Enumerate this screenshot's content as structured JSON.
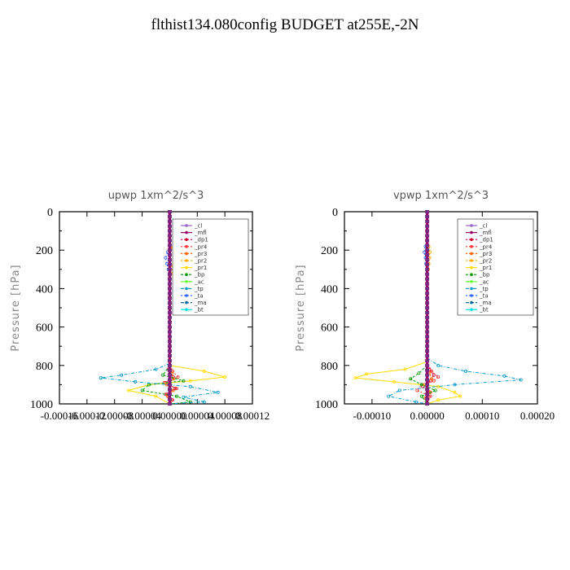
{
  "title": "flthist134.080config  BUDGET at255E,-2N",
  "series_style": [
    {
      "name": "_cl",
      "color": "#9966cc",
      "dash": "none"
    },
    {
      "name": "_mfl",
      "color": "#990066",
      "dash": "none"
    },
    {
      "name": "_dp1",
      "color": "#cc0033",
      "dash": "2,2"
    },
    {
      "name": "_pr4",
      "color": "#ff3333",
      "dash": "2,2"
    },
    {
      "name": "_pr3",
      "color": "#ff6600",
      "dash": "2,2"
    },
    {
      "name": "_pr2",
      "color": "#ffaa00",
      "dash": "2,2"
    },
    {
      "name": "_pr1",
      "color": "#ffdd00",
      "dash": "none"
    },
    {
      "name": "_bp",
      "color": "#009900",
      "dash": "3,2"
    },
    {
      "name": "_ac",
      "color": "#66ff33",
      "dash": "none"
    },
    {
      "name": "_tp",
      "color": "#0099cc",
      "dash": "4,2,1,2"
    },
    {
      "name": "_ta",
      "color": "#3366ff",
      "dash": "2,2"
    },
    {
      "name": "_ma",
      "color": "#006699",
      "dash": "4,2"
    },
    {
      "name": "_bt",
      "color": "#00dddd",
      "dash": "none"
    }
  ],
  "chart_data": [
    {
      "type": "line",
      "title": "upwp   1xm^2/s^3",
      "ylabel": "Pressure [hPa]",
      "xlabel": "",
      "ylim": [
        1000,
        0
      ],
      "y_ticks": [
        "0",
        "200",
        "400",
        "600",
        "800",
        "1000"
      ],
      "x_ticks": [
        "-0.00016",
        "-0.00012",
        "-0.00008",
        "-0.00004",
        "0.00000",
        "0.00004",
        "0.00008",
        "0.00012"
      ],
      "x_tick_values": [
        -0.00016,
        -0.00012,
        -8e-05,
        -4e-05,
        0.0,
        4e-05,
        8e-05,
        0.00012
      ],
      "xlim": [
        -0.00016,
        0.00012
      ],
      "grid": false,
      "legend": "top-right",
      "series": [
        {
          "name": "_cl",
          "p": [
            0,
            1000
          ],
          "v": [
            0,
            0
          ]
        },
        {
          "name": "_mfl",
          "p": [
            0,
            1000
          ],
          "v": [
            0,
            0
          ]
        },
        {
          "name": "_dp1",
          "p": [
            750,
            820,
            860,
            890,
            920,
            950,
            980,
            1000
          ],
          "v": [
            0,
            -2e-06,
            5e-06,
            -6e-06,
            8e-06,
            -4e-06,
            3e-06,
            0
          ]
        },
        {
          "name": "_pr4",
          "p": [
            780,
            830,
            860,
            890,
            920,
            950,
            980,
            1000
          ],
          "v": [
            0,
            4e-06,
            1.2e-05,
            -8e-06,
            1e-05,
            -6e-06,
            4e-06,
            0
          ]
        },
        {
          "name": "_pr3",
          "p": [
            800,
            840,
            870,
            900,
            930,
            960,
            1000
          ],
          "v": [
            0,
            3e-06,
            6e-06,
            -4e-06,
            5e-06,
            -3e-06,
            0
          ]
        },
        {
          "name": "_pr2",
          "p": [
            150,
            190,
            220,
            250,
            280,
            320,
            350
          ],
          "v": [
            0,
            4e-06,
            7e-06,
            6e-06,
            4e-06,
            3e-06,
            0
          ]
        },
        {
          "name": "_pr1",
          "p": [
            800,
            830,
            860,
            880,
            900,
            930,
            960,
            1000
          ],
          "v": [
            0,
            5e-05,
            8e-05,
            3e-05,
            -3e-05,
            -6e-05,
            -2e-05,
            0
          ]
        },
        {
          "name": "_bp",
          "p": [
            800,
            850,
            880,
            900,
            930,
            960,
            990,
            1000
          ],
          "v": [
            0,
            -1e-05,
            2e-05,
            -3e-05,
            -4e-05,
            1e-05,
            3e-05,
            0
          ]
        },
        {
          "name": "_ac",
          "p": [
            0,
            1000
          ],
          "v": [
            0,
            0
          ]
        },
        {
          "name": "_tp",
          "p": [
            790,
            820,
            850,
            865,
            885,
            910,
            940,
            965,
            990,
            1000
          ],
          "v": [
            0,
            -2e-05,
            -7e-05,
            -0.0001,
            -5e-05,
            3e-05,
            7e-05,
            2e-05,
            5e-05,
            0
          ]
        },
        {
          "name": "_ta",
          "p": [
            180,
            210,
            240,
            270,
            300,
            330
          ],
          "v": [
            0,
            -3e-06,
            -6e-06,
            -4e-06,
            -2e-06,
            0
          ]
        },
        {
          "name": "_ma",
          "p": [
            0,
            1000
          ],
          "v": [
            0,
            0
          ]
        },
        {
          "name": "_bt",
          "p": [
            0,
            1000
          ],
          "v": [
            0,
            0
          ]
        }
      ]
    },
    {
      "type": "line",
      "title": "vpwp   1xm^2/s^3",
      "ylabel": "Pressure [hPa]",
      "xlabel": "",
      "ylim": [
        1000,
        0
      ],
      "y_ticks": [
        "0",
        "200",
        "400",
        "600",
        "800",
        "1000"
      ],
      "x_ticks": [
        "-0.00010",
        "0.00000",
        "0.00010",
        "0.00020"
      ],
      "x_tick_values": [
        -0.0001,
        0.0,
        0.0001,
        0.0002
      ],
      "xlim": [
        -0.00015,
        0.0002
      ],
      "grid": false,
      "legend": "top-right",
      "series": [
        {
          "name": "_cl",
          "p": [
            0,
            1000
          ],
          "v": [
            0,
            0
          ]
        },
        {
          "name": "_mfl",
          "p": [
            0,
            1000
          ],
          "v": [
            0,
            0
          ]
        },
        {
          "name": "_dp1",
          "p": [
            760,
            820,
            850,
            880,
            910,
            940,
            970,
            1000
          ],
          "v": [
            0,
            4e-06,
            1.2e-05,
            6e-06,
            -8e-06,
            5e-06,
            -3e-06,
            0
          ]
        },
        {
          "name": "_pr4",
          "p": [
            780,
            830,
            860,
            880,
            900,
            930,
            960,
            1000
          ],
          "v": [
            0,
            8e-06,
            2e-05,
            1.2e-05,
            -1e-05,
            -1.8e-05,
            6e-06,
            0
          ]
        },
        {
          "name": "_pr3",
          "p": [
            800,
            840,
            870,
            900,
            940,
            970,
            1000
          ],
          "v": [
            0,
            4e-06,
            8e-06,
            -4e-06,
            6e-06,
            -3e-06,
            0
          ]
        },
        {
          "name": "_pr2",
          "p": [
            150,
            180,
            210,
            240,
            270,
            300,
            330
          ],
          "v": [
            0,
            3e-06,
            5e-06,
            4e-06,
            3e-06,
            2e-06,
            0
          ]
        },
        {
          "name": "_pr1",
          "p": [
            780,
            820,
            845,
            865,
            885,
            910,
            940,
            960,
            980,
            1000
          ],
          "v": [
            0,
            -4e-05,
            -0.00011,
            -0.00013,
            -6e-05,
            2e-05,
            5e-05,
            6e-05,
            2e-05,
            0
          ]
        },
        {
          "name": "_bp",
          "p": [
            800,
            840,
            870,
            900,
            930,
            960,
            1000
          ],
          "v": [
            0,
            -1.5e-05,
            -3e-05,
            -1e-05,
            1.5e-05,
            -1e-05,
            0
          ]
        },
        {
          "name": "_ac",
          "p": [
            0,
            1000
          ],
          "v": [
            0,
            0
          ]
        },
        {
          "name": "_tp",
          "p": [
            760,
            800,
            830,
            855,
            875,
            900,
            930,
            960,
            990,
            1000
          ],
          "v": [
            0,
            2e-05,
            7e-05,
            0.00014,
            0.00017,
            5e-05,
            -5e-05,
            -7e-05,
            -2e-05,
            0
          ]
        },
        {
          "name": "_ta",
          "p": [
            150,
            180,
            210,
            240,
            270,
            300
          ],
          "v": [
            0,
            -3e-06,
            -5e-06,
            -3e-06,
            -2e-06,
            0
          ]
        },
        {
          "name": "_ma",
          "p": [
            0,
            1000
          ],
          "v": [
            0,
            0
          ]
        },
        {
          "name": "_bt",
          "p": [
            0,
            1000
          ],
          "v": [
            0,
            0
          ]
        }
      ]
    }
  ]
}
